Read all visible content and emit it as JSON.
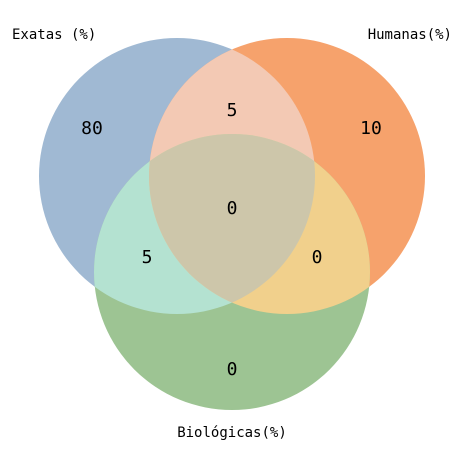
{
  "diagram": {
    "type": "venn3",
    "sets": [
      {
        "key": "A",
        "name": "Exatas (%)",
        "color": "#a0b9d3"
      },
      {
        "key": "B",
        "name": "Humanas(%)",
        "color": "#f6a26c"
      },
      {
        "key": "C",
        "name": "Biológicas(%)",
        "color": "#9dc493"
      }
    ],
    "regions": {
      "A_only": "80",
      "B_only": "10",
      "C_only": "0",
      "AB": "5",
      "AC": "5",
      "BC": "0",
      "ABC": "0"
    },
    "overlap_colors": {
      "AB": "#f3c9b4",
      "AC": "#b4e2d1",
      "BC": "#f1d08c",
      "ABC": "#cdc6aa"
    }
  }
}
